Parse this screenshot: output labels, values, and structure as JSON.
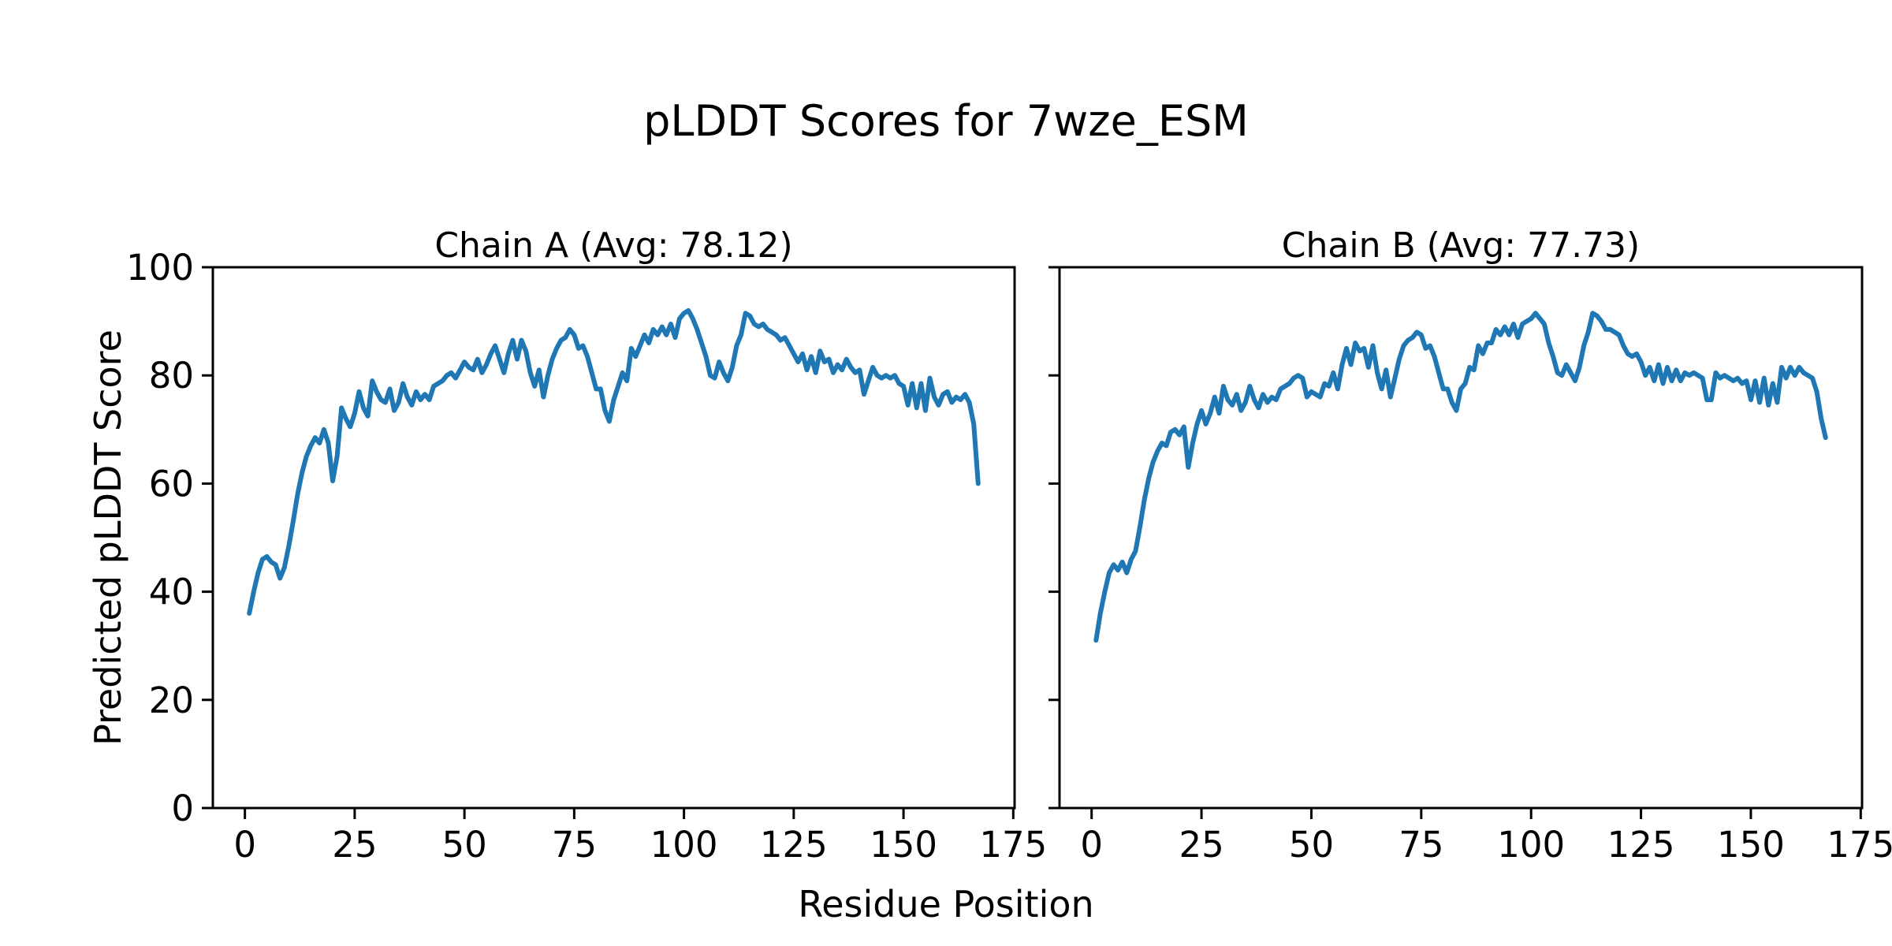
{
  "figure": {
    "suptitle": "pLDDT Scores for 7wze_ESM",
    "xlabel": "Residue Position",
    "ylabel": "Predicted pLDDT Score"
  },
  "chart_data": [
    {
      "type": "line",
      "title": "Chain A (Avg: 78.12)",
      "chain": "A",
      "average_plddt": 78.12,
      "xlabel": "Residue Position",
      "ylabel": "Predicted pLDDT Score",
      "xlim": [
        -7.3,
        175.3
      ],
      "ylim": [
        0,
        100
      ],
      "x_ticks": [
        0,
        25,
        50,
        75,
        100,
        125,
        150,
        175
      ],
      "y_ticks": [
        0,
        20,
        40,
        60,
        80,
        100
      ],
      "grid": false,
      "legend": "none",
      "line_color": "#1f77b4",
      "x_start": 1,
      "x_step": 1,
      "values": [
        36,
        40,
        43.5,
        46,
        46.5,
        45.5,
        45,
        42.5,
        44.5,
        48.5,
        53,
        58,
        62,
        65,
        67,
        68.5,
        67.5,
        70,
        67.5,
        60.5,
        65,
        74,
        72,
        70.5,
        73,
        77,
        74,
        72.5,
        79,
        77,
        75.5,
        75,
        77.5,
        73.5,
        75,
        78.5,
        76,
        74.5,
        77,
        75.5,
        76.5,
        75.5,
        78,
        78.5,
        79,
        80,
        80.5,
        79.5,
        81,
        82.5,
        81.5,
        81,
        83,
        80.5,
        82,
        84,
        85.5,
        83,
        80.5,
        84,
        86.5,
        83,
        86.5,
        84.5,
        80.5,
        78,
        81,
        76,
        80,
        83,
        85,
        86.5,
        87,
        88.5,
        87.5,
        85,
        85.5,
        83.5,
        80.5,
        77.5,
        77.5,
        73.5,
        71.5,
        75.5,
        78,
        80.5,
        79,
        85,
        83.5,
        85.5,
        87.5,
        86,
        88.5,
        87.5,
        89,
        87.5,
        89.5,
        87,
        90.5,
        91.5,
        92,
        90.5,
        88.5,
        86,
        83.5,
        80,
        79.5,
        82.5,
        80.5,
        79,
        81.5,
        85.5,
        87.5,
        91.5,
        91,
        89.5,
        89,
        89.5,
        88.5,
        88,
        87.5,
        86.5,
        87,
        85.5,
        84,
        82.5,
        84,
        81,
        83.5,
        80.5,
        84.5,
        82.5,
        83,
        80.5,
        82,
        81,
        83,
        81.5,
        80.5,
        81,
        76.5,
        79,
        81.5,
        80,
        79.5,
        80,
        79.5,
        80,
        78.5,
        78,
        74.5,
        78.5,
        74,
        78.5,
        73.5,
        79.5,
        76,
        74.5,
        76.5,
        77,
        75,
        76,
        75.5,
        76.5,
        75,
        71,
        60
      ]
    },
    {
      "type": "line",
      "title": "Chain B (Avg: 77.73)",
      "chain": "B",
      "average_plddt": 77.73,
      "xlabel": "Residue Position",
      "ylabel": "Predicted pLDDT Score",
      "xlim": [
        -7.3,
        175.3
      ],
      "ylim": [
        0,
        100
      ],
      "x_ticks": [
        0,
        25,
        50,
        75,
        100,
        125,
        150,
        175
      ],
      "y_ticks": [
        0,
        20,
        40,
        60,
        80,
        100
      ],
      "grid": false,
      "legend": "none",
      "line_color": "#1f77b4",
      "x_start": 1,
      "x_step": 1,
      "values": [
        31,
        36,
        40,
        43.5,
        45,
        44,
        45.5,
        43.5,
        46,
        47.5,
        52,
        57,
        61,
        64,
        66,
        67.5,
        67,
        69.5,
        70,
        69,
        70.5,
        63,
        67.5,
        71,
        73.5,
        71,
        73,
        76,
        73,
        78,
        75.5,
        74.5,
        76.5,
        73.5,
        75,
        78,
        75.5,
        74,
        76.5,
        75,
        76,
        75.5,
        77.5,
        78,
        78.5,
        79.5,
        80,
        79.5,
        76,
        77,
        76.5,
        76,
        78.5,
        78,
        80.5,
        77.5,
        82,
        85,
        82,
        86,
        84.5,
        85,
        81.5,
        85.5,
        80.5,
        77.5,
        81,
        76,
        79.5,
        83,
        85.5,
        86.5,
        87,
        88,
        87.5,
        85,
        85.5,
        83.5,
        80.5,
        77.5,
        77.5,
        75,
        73.5,
        77.5,
        78.5,
        81.5,
        81,
        85.5,
        84,
        86,
        86,
        88.5,
        87.5,
        89,
        87.5,
        89.5,
        87,
        89.5,
        90,
        90.5,
        91.5,
        90.5,
        89.5,
        86,
        83.5,
        80.5,
        80,
        82,
        80.5,
        79,
        81.5,
        85.5,
        88,
        91.5,
        91,
        90,
        88.5,
        88.5,
        88,
        87.5,
        85.5,
        84,
        83.5,
        84,
        82.5,
        80,
        81.5,
        79,
        82,
        78.5,
        81.5,
        79,
        81,
        79,
        80.5,
        80,
        80.5,
        80,
        79.5,
        75.5,
        75.5,
        80.5,
        79.5,
        80,
        79.5,
        79,
        79.5,
        78.5,
        79,
        75.5,
        79,
        75,
        79.5,
        74.5,
        78.5,
        75,
        81.5,
        79.5,
        81.5,
        80,
        81.5,
        80.5,
        80,
        79.5,
        77,
        72,
        68.5
      ]
    }
  ]
}
